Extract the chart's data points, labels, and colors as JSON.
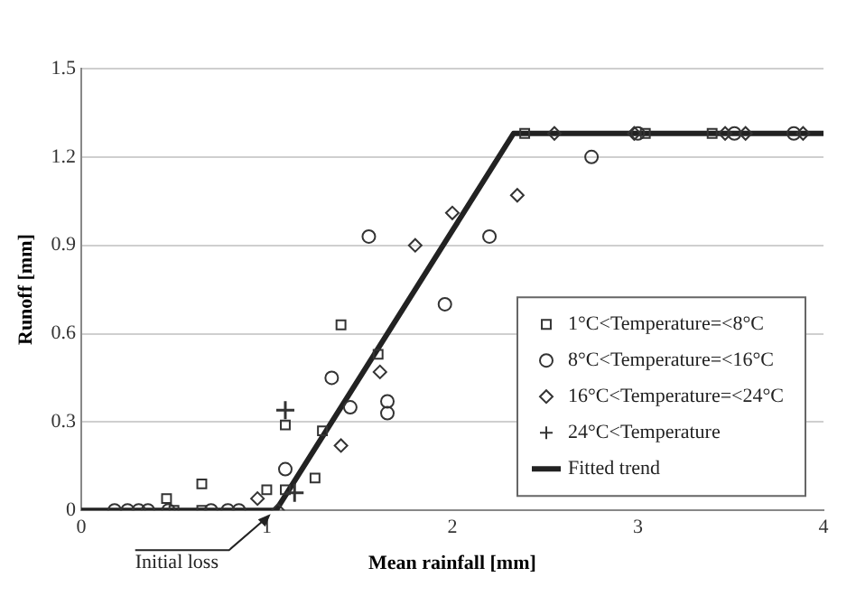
{
  "chart_data": {
    "type": "scatter",
    "xlabel": "Mean rainfall [mm]",
    "ylabel": "Runoff [mm]",
    "xlim": [
      0,
      4
    ],
    "xticks": [
      0,
      1,
      2,
      3,
      4
    ],
    "ylim": [
      0,
      1.5
    ],
    "yticks": [
      0,
      0.3,
      0.6,
      0.9,
      1.2,
      1.5
    ],
    "grid": "y",
    "legend": "bottom right",
    "annotations": [
      {
        "text": "Initial loss",
        "x": 1.05,
        "y": 0
      }
    ],
    "series": [
      {
        "name": "1°C<Temperature=<8°C",
        "color": "#333333",
        "marker": "square",
        "x": [
          0.5,
          0.65,
          0.46,
          0.65,
          1.0,
          1.1,
          1.3,
          1.26,
          1.4,
          1.6,
          1.1,
          2.39,
          3.04,
          3.4
        ],
        "values": [
          0,
          0,
          0.04,
          0.09,
          0.07,
          0.29,
          0.27,
          0.11,
          0.63,
          0.53,
          0.07,
          1.28,
          1.28,
          1.28
        ]
      },
      {
        "name": "8°C<Temperature=<16°C",
        "color": "#333333",
        "marker": "circle",
        "x": [
          0.18,
          0.25,
          0.31,
          0.36,
          0.47,
          0.7,
          0.79,
          0.85,
          1.55,
          1.35,
          1.45,
          1.1,
          1.65,
          1.65,
          2.2,
          1.96,
          2.75,
          3.0,
          3.52,
          3.84
        ],
        "values": [
          0,
          0,
          0,
          0,
          0,
          0,
          0,
          0,
          0.93,
          0.45,
          0.35,
          0.14,
          0.37,
          0.33,
          0.93,
          0.7,
          1.2,
          1.28,
          1.28,
          1.28
        ]
      },
      {
        "name": "16°C<Temperature=<24°C",
        "color": "#333333",
        "marker": "diamond",
        "x": [
          0.95,
          1.06,
          1.4,
          1.61,
          1.8,
          2.0,
          2.35,
          2.55,
          2.98,
          3.47,
          3.58,
          3.89
        ],
        "values": [
          0.04,
          0,
          0.22,
          0.47,
          0.9,
          1.01,
          1.07,
          1.28,
          1.28,
          1.28,
          1.28,
          1.28
        ]
      },
      {
        "name": "24°C<Temperature",
        "color": "#333333",
        "marker": "cross",
        "x": [
          1.1,
          1.15
        ],
        "values": [
          0.34,
          0.06
        ]
      },
      {
        "name": "Fitted trend",
        "type": "line",
        "color": "#222222",
        "marker": "none",
        "x": [
          0,
          1.05,
          2.33,
          4
        ],
        "values": [
          0,
          0,
          1.28,
          1.28
        ]
      }
    ]
  }
}
